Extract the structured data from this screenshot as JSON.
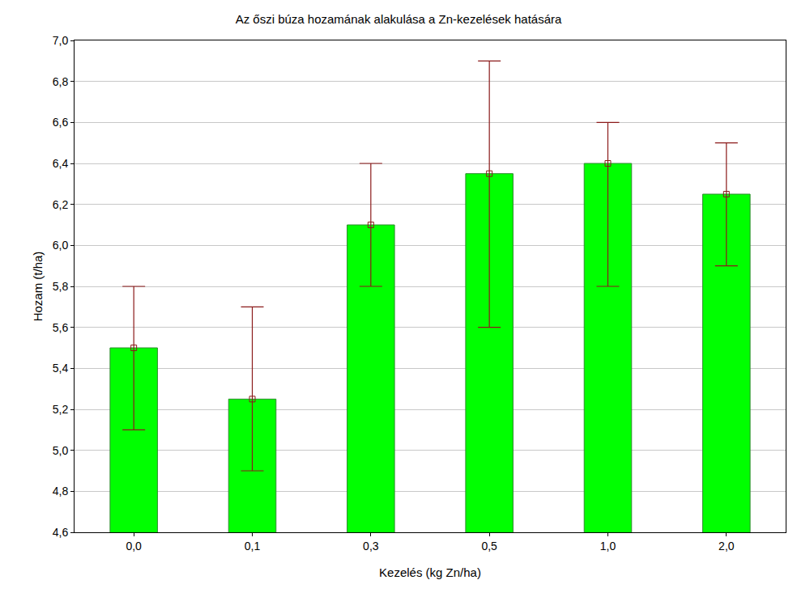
{
  "chart_data": {
    "type": "bar",
    "title": "Az őszi búza hozamának alakulása a Zn-kezelések hatására",
    "x_label": "Kezelés (kg Zn/ha)",
    "y_label": "Hozam (t/ha)",
    "categories": [
      "0,0",
      "0,1",
      "0,3",
      "0,5",
      "1,0",
      "2,0"
    ],
    "values": [
      5.5,
      5.25,
      6.1,
      6.35,
      6.4,
      6.25
    ],
    "error_low": [
      5.1,
      4.9,
      5.8,
      5.6,
      5.8,
      5.9
    ],
    "error_high": [
      5.8,
      5.7,
      6.4,
      6.9,
      6.6,
      6.5
    ],
    "color": "#00ff00",
    "marker": "square",
    "ylim": [
      4.6,
      7.0
    ],
    "yticks": [
      {
        "value": 4.6,
        "label": "4,6"
      },
      {
        "value": 4.8,
        "label": "4,8"
      },
      {
        "value": 5.0,
        "label": "5,0"
      },
      {
        "value": 5.2,
        "label": "5,2"
      },
      {
        "value": 5.4,
        "label": "5,4"
      },
      {
        "value": 5.6,
        "label": "5,6"
      },
      {
        "value": 5.8,
        "label": "5,8"
      },
      {
        "value": 6.0,
        "label": "6,0"
      },
      {
        "value": 6.2,
        "label": "6,2"
      },
      {
        "value": 6.4,
        "label": "6,4"
      },
      {
        "value": 6.6,
        "label": "6,6"
      },
      {
        "value": 6.8,
        "label": "6,8"
      },
      {
        "value": 7.0,
        "label": "7,0"
      }
    ],
    "grid": true
  }
}
